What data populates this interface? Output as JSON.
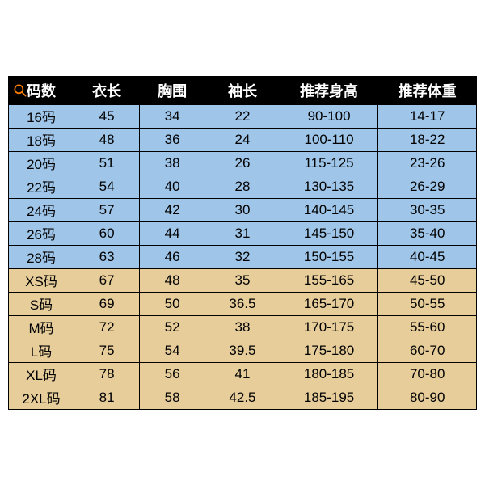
{
  "table": {
    "type": "table",
    "background_color": "#ffffff",
    "border_color": "#000000",
    "header": {
      "bg": "#000000",
      "fg": "#ffffff",
      "fontsize": 18,
      "icon": "search-icon",
      "columns": [
        "码数",
        "衣长",
        "胸围",
        "袖长",
        "推荐身高",
        "推荐体重"
      ]
    },
    "col_widths_pct": [
      14,
      14,
      14,
      16,
      21,
      21
    ],
    "row_colors": {
      "blue": "#9fc5e8",
      "tan": "#e7cd9a"
    },
    "cell_fontsize": 17,
    "rows": [
      {
        "color": "blue",
        "cells": [
          "16码",
          "45",
          "34",
          "22",
          "90-100",
          "14-17"
        ]
      },
      {
        "color": "blue",
        "cells": [
          "18码",
          "48",
          "36",
          "24",
          "100-110",
          "18-22"
        ]
      },
      {
        "color": "blue",
        "cells": [
          "20码",
          "51",
          "38",
          "26",
          "115-125",
          "23-26"
        ]
      },
      {
        "color": "blue",
        "cells": [
          "22码",
          "54",
          "40",
          "28",
          "130-135",
          "26-29"
        ]
      },
      {
        "color": "blue",
        "cells": [
          "24码",
          "57",
          "42",
          "30",
          "140-145",
          "30-35"
        ]
      },
      {
        "color": "blue",
        "cells": [
          "26码",
          "60",
          "44",
          "31",
          "145-150",
          "35-40"
        ]
      },
      {
        "color": "blue",
        "cells": [
          "28码",
          "63",
          "46",
          "32",
          "150-155",
          "40-45"
        ]
      },
      {
        "color": "tan",
        "cells": [
          "XS码",
          "67",
          "48",
          "35",
          "155-165",
          "45-50"
        ]
      },
      {
        "color": "tan",
        "cells": [
          "S码",
          "69",
          "50",
          "36.5",
          "165-170",
          "50-55"
        ]
      },
      {
        "color": "tan",
        "cells": [
          "M码",
          "72",
          "52",
          "38",
          "170-175",
          "55-60"
        ]
      },
      {
        "color": "tan",
        "cells": [
          "L码",
          "75",
          "54",
          "39.5",
          "175-180",
          "60-70"
        ]
      },
      {
        "color": "tan",
        "cells": [
          "XL码",
          "78",
          "56",
          "41",
          "180-185",
          "70-80"
        ]
      },
      {
        "color": "tan",
        "cells": [
          "2XL码",
          "81",
          "58",
          "42.5",
          "185-195",
          "80-90"
        ]
      }
    ]
  }
}
